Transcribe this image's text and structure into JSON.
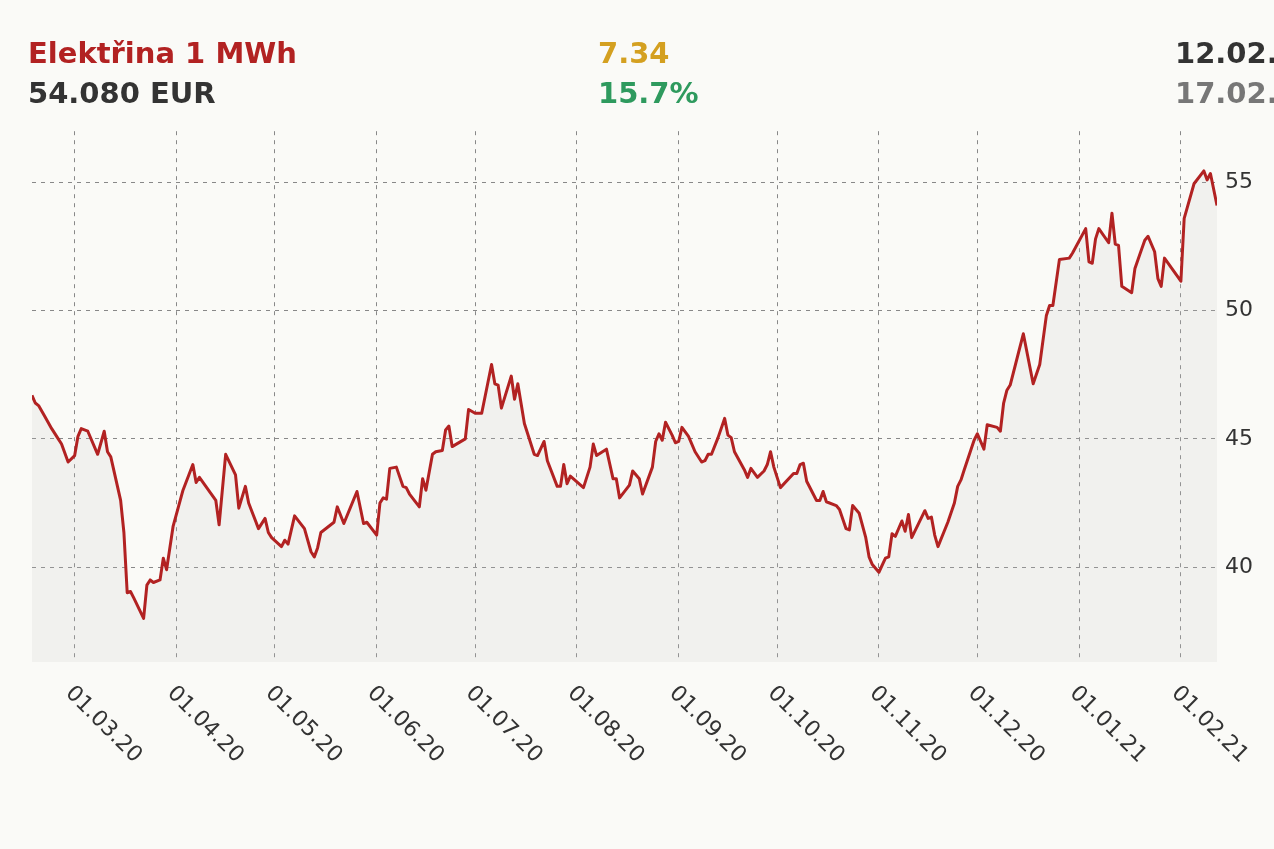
{
  "chart_data": {
    "type": "area",
    "title": "Elektřina 1 MWh",
    "subtitle": "54.080 EUR",
    "annotations": [
      "7.34",
      "15.7%",
      "12.02.",
      "17.02."
    ],
    "x": [
      "2020-02-17",
      "2020-02-18",
      "2020-02-19",
      "2020-02-21",
      "2020-02-23",
      "2020-02-25",
      "2020-02-26",
      "2020-02-28",
      "2020-03-01",
      "2020-03-02",
      "2020-03-03",
      "2020-03-05",
      "2020-03-08",
      "2020-03-10",
      "2020-03-11",
      "2020-03-12",
      "2020-03-15",
      "2020-03-16",
      "2020-03-17",
      "2020-03-18",
      "2020-03-19",
      "2020-03-22",
      "2020-03-23",
      "2020-03-24",
      "2020-03-25",
      "2020-03-27",
      "2020-03-28",
      "2020-03-29",
      "2020-03-31",
      "2020-04-03",
      "2020-04-06",
      "2020-04-07",
      "2020-04-08",
      "2020-04-13",
      "2020-04-14",
      "2020-04-16",
      "2020-04-19",
      "2020-04-20",
      "2020-04-22",
      "2020-04-23",
      "2020-04-26",
      "2020-04-28",
      "2020-04-29",
      "2020-04-30",
      "2020-05-03",
      "2020-05-04",
      "2020-05-05",
      "2020-05-07",
      "2020-05-10",
      "2020-05-12",
      "2020-05-13",
      "2020-05-14",
      "2020-05-15",
      "2020-05-19",
      "2020-05-20",
      "2020-05-22",
      "2020-05-26",
      "2020-05-28",
      "2020-05-29",
      "2020-06-01",
      "2020-06-02",
      "2020-06-03",
      "2020-06-04",
      "2020-06-05",
      "2020-06-07",
      "2020-06-09",
      "2020-06-10",
      "2020-06-11",
      "2020-06-14",
      "2020-06-15",
      "2020-06-16",
      "2020-06-18",
      "2020-06-19",
      "2020-06-21",
      "2020-06-22",
      "2020-06-23",
      "2020-06-24",
      "2020-06-28",
      "2020-06-29",
      "2020-07-01",
      "2020-07-03",
      "2020-07-06",
      "2020-07-07",
      "2020-07-08",
      "2020-07-09",
      "2020-07-12",
      "2020-07-13",
      "2020-07-14",
      "2020-07-16",
      "2020-07-19",
      "2020-07-20",
      "2020-07-22",
      "2020-07-23",
      "2020-07-26",
      "2020-07-27",
      "2020-07-28",
      "2020-07-29",
      "2020-07-30",
      "2020-08-03",
      "2020-08-05",
      "2020-08-06",
      "2020-08-07",
      "2020-08-10",
      "2020-08-12",
      "2020-08-13",
      "2020-08-14",
      "2020-08-17",
      "2020-08-18",
      "2020-08-20",
      "2020-08-21",
      "2020-08-24",
      "2020-08-25",
      "2020-08-26",
      "2020-08-27",
      "2020-08-28",
      "2020-08-30",
      "2020-08-31",
      "2020-09-01",
      "2020-09-02",
      "2020-09-04",
      "2020-09-06",
      "2020-09-08",
      "2020-09-09",
      "2020-09-10",
      "2020-09-11",
      "2020-09-13",
      "2020-09-15",
      "2020-09-16",
      "2020-09-17",
      "2020-09-18",
      "2020-09-21",
      "2020-09-22",
      "2020-09-23",
      "2020-09-25",
      "2020-09-27",
      "2020-09-28",
      "2020-09-29",
      "2020-09-30",
      "2020-10-02",
      "2020-10-06",
      "2020-10-07",
      "2020-10-08",
      "2020-10-09",
      "2020-10-10",
      "2020-10-13",
      "2020-10-14",
      "2020-10-15",
      "2020-10-16",
      "2020-10-19",
      "2020-10-20",
      "2020-10-22",
      "2020-10-23",
      "2020-10-24",
      "2020-10-26",
      "2020-10-28",
      "2020-10-29",
      "2020-10-30",
      "2020-11-01",
      "2020-11-03",
      "2020-11-04",
      "2020-11-05",
      "2020-11-06",
      "2020-11-08",
      "2020-11-09",
      "2020-11-10",
      "2020-11-11",
      "2020-11-15",
      "2020-11-16",
      "2020-11-17",
      "2020-11-18",
      "2020-11-19",
      "2020-11-22",
      "2020-11-24",
      "2020-11-25",
      "2020-11-26",
      "2020-11-27",
      "2020-11-30",
      "2020-12-01",
      "2020-12-03",
      "2020-12-04",
      "2020-12-07",
      "2020-12-08",
      "2020-12-09",
      "2020-12-10",
      "2020-12-11",
      "2020-12-15",
      "2020-12-18",
      "2020-12-20",
      "2020-12-22",
      "2020-12-23",
      "2020-12-24",
      "2020-12-26",
      "2020-12-29",
      "2020-12-30",
      "2021-01-03",
      "2021-01-04",
      "2021-01-05",
      "2021-01-06",
      "2021-01-07",
      "2021-01-10",
      "2021-01-11",
      "2021-01-12",
      "2021-01-13",
      "2021-01-14",
      "2021-01-17",
      "2021-01-18",
      "2021-01-21",
      "2021-01-22",
      "2021-01-24",
      "2021-01-25",
      "2021-01-26",
      "2021-01-27",
      "2021-02-01",
      "2021-02-02",
      "2021-02-03",
      "2021-02-05",
      "2021-02-08",
      "2021-02-09",
      "2021-02-10",
      "2021-02-12"
    ],
    "series": [
      {
        "color": "#b22222",
        "values": [
          46.7,
          46.4,
          46.3,
          45.85,
          45.4,
          45.0,
          44.8,
          44.1,
          44.35,
          45.1,
          45.4,
          45.3,
          44.4,
          45.3,
          44.5,
          44.3,
          42.6,
          41.35,
          39.0,
          39.05,
          38.8,
          38.0,
          39.3,
          39.5,
          39.4,
          39.5,
          40.35,
          39.9,
          41.6,
          43.0,
          44.0,
          43.3,
          43.5,
          42.6,
          41.65,
          44.4,
          43.6,
          42.3,
          43.15,
          42.5,
          41.5,
          41.9,
          41.35,
          41.15,
          40.8,
          41.05,
          40.9,
          42.0,
          41.5,
          40.6,
          40.4,
          40.75,
          41.35,
          41.75,
          42.35,
          41.7,
          42.95,
          41.7,
          41.75,
          41.25,
          42.5,
          42.7,
          42.65,
          43.85,
          43.9,
          43.15,
          43.1,
          42.85,
          42.35,
          43.45,
          43.0,
          44.4,
          44.5,
          44.55,
          45.35,
          45.5,
          44.7,
          45.0,
          46.15,
          46.0,
          46.0,
          47.9,
          47.15,
          47.1,
          46.2,
          47.45,
          46.55,
          47.15,
          45.6,
          44.4,
          44.35,
          44.9,
          44.15,
          43.15,
          43.15,
          44.0,
          43.25,
          43.55,
          43.1,
          43.9,
          44.8,
          44.35,
          44.6,
          43.45,
          43.45,
          42.7,
          43.2,
          43.75,
          43.45,
          42.85,
          43.9,
          44.9,
          45.2,
          44.95,
          45.65,
          45.15,
          44.85,
          44.9,
          45.45,
          45.1,
          44.5,
          44.1,
          44.15,
          44.4,
          44.4,
          45.05,
          45.8,
          45.15,
          45.05,
          44.5,
          43.8,
          43.5,
          43.85,
          43.5,
          43.75,
          44.0,
          44.5,
          43.9,
          43.1,
          43.65,
          43.65,
          44.0,
          44.05,
          43.35,
          42.6,
          42.6,
          42.95,
          42.55,
          42.4,
          42.25,
          41.5,
          41.45,
          42.4,
          42.1,
          41.15,
          40.4,
          40.1,
          39.8,
          40.35,
          40.4,
          41.3,
          41.2,
          41.8,
          41.4,
          42.05,
          41.15,
          42.2,
          41.9,
          41.95,
          41.25,
          40.8,
          41.75,
          42.5,
          43.15,
          43.4,
          43.8,
          44.95,
          45.2,
          44.6,
          45.55,
          45.45,
          45.3,
          46.4,
          46.9,
          47.1,
          49.1,
          47.15,
          47.9,
          49.8,
          50.2,
          50.2,
          52.0,
          52.05,
          52.25,
          53.2,
          51.9,
          51.85,
          52.8,
          53.2,
          52.65,
          53.8,
          52.6,
          52.55,
          50.95,
          50.7,
          51.65,
          52.75,
          52.9,
          52.3,
          51.25,
          50.95,
          52.05,
          51.15,
          53.6,
          54.05,
          54.95,
          55.45,
          55.1,
          55.35,
          54.1
        ]
      }
    ],
    "xlim": [
      "2020-02-17",
      "2021-02-12"
    ],
    "xticks": [
      {
        "value": "2020-03-01",
        "label": "01.03.20"
      },
      {
        "value": "2020-04-01",
        "label": "01.04.20"
      },
      {
        "value": "2020-05-01",
        "label": "01.05.20"
      },
      {
        "value": "2020-06-01",
        "label": "01.06.20"
      },
      {
        "value": "2020-07-01",
        "label": "01.07.20"
      },
      {
        "value": "2020-08-01",
        "label": "01.08.20"
      },
      {
        "value": "2020-09-01",
        "label": "01.09.20"
      },
      {
        "value": "2020-10-01",
        "label": "01.10.20"
      },
      {
        "value": "2020-11-01",
        "label": "01.11.20"
      },
      {
        "value": "2020-12-01",
        "label": "01.12.20"
      },
      {
        "value": "2021-01-01",
        "label": "01.01.21"
      },
      {
        "value": "2021-02-01",
        "label": "01.02.21"
      }
    ],
    "ylim": [
      36.3,
      57
    ],
    "yticks": [
      40,
      45,
      50,
      55
    ],
    "grid": true,
    "legend": false,
    "marker": "none",
    "line_style": "solid"
  }
}
